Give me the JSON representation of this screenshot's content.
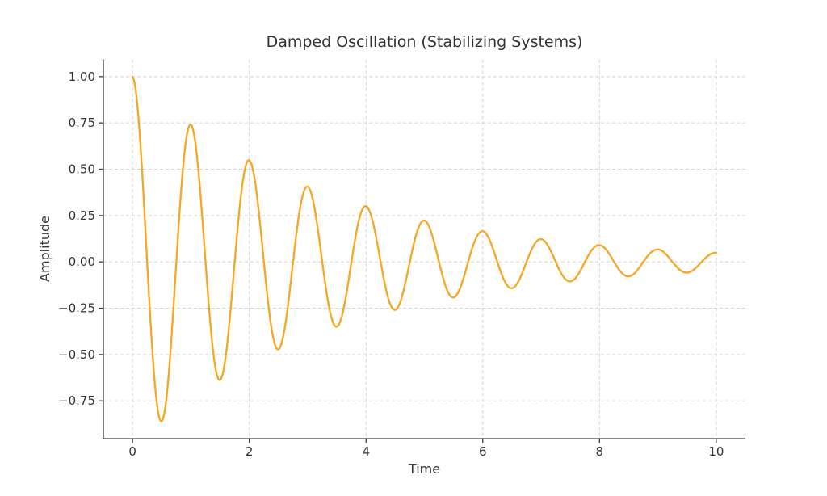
{
  "chart_data": {
    "type": "line",
    "title": "Damped Oscillation (Stabilizing Systems)",
    "xlabel": "Time",
    "ylabel": "Amplitude",
    "xlim": [
      -0.5,
      10.5
    ],
    "ylim": [
      -0.954,
      1.093
    ],
    "x_ticks": [
      0,
      2,
      4,
      6,
      8,
      10
    ],
    "x_tick_labels": [
      "0",
      "2",
      "4",
      "6",
      "8",
      "10"
    ],
    "y_ticks": [
      1.0,
      0.75,
      0.5,
      0.25,
      0.0,
      -0.25,
      -0.5,
      -0.75
    ],
    "y_tick_labels": [
      "1.00",
      "0.75",
      "0.50",
      "0.25",
      "0.00",
      "−0.25",
      "−0.50",
      "−0.75"
    ],
    "grid": {
      "visible": true,
      "style": "dashed",
      "color": "#d2d2d2"
    },
    "legend": "none",
    "spines": {
      "left": true,
      "bottom": true,
      "top": false,
      "right": false
    },
    "spine_color": "#3a3a3a",
    "text_color": "#333333",
    "background": "#ffffff",
    "series": [
      {
        "name": "damped oscillation",
        "color": "#F5A623",
        "line_width": 2.3,
        "function": "y(t) = exp(-0.3*t) * cos(2*pi*t)",
        "params": {
          "amplitude": 1.0,
          "decay_rate": 0.3,
          "frequency_hz": 1.0,
          "t_start": 0,
          "t_end": 10,
          "n_samples": 600
        },
        "peaks": {
          "t": [
            0,
            1,
            2,
            3,
            4,
            5,
            6,
            7,
            8,
            9,
            10
          ],
          "y": [
            1.0,
            0.741,
            0.549,
            0.407,
            0.301,
            0.223,
            0.165,
            0.122,
            0.091,
            0.067,
            0.05
          ]
        },
        "troughs": {
          "t": [
            0.5,
            1.5,
            2.5,
            3.5,
            4.5,
            5.5,
            6.5,
            7.5,
            8.5,
            9.5
          ],
          "y": [
            -0.861,
            -0.638,
            -0.472,
            -0.35,
            -0.259,
            -0.192,
            -0.142,
            -0.105,
            -0.078,
            -0.058
          ]
        }
      }
    ]
  }
}
